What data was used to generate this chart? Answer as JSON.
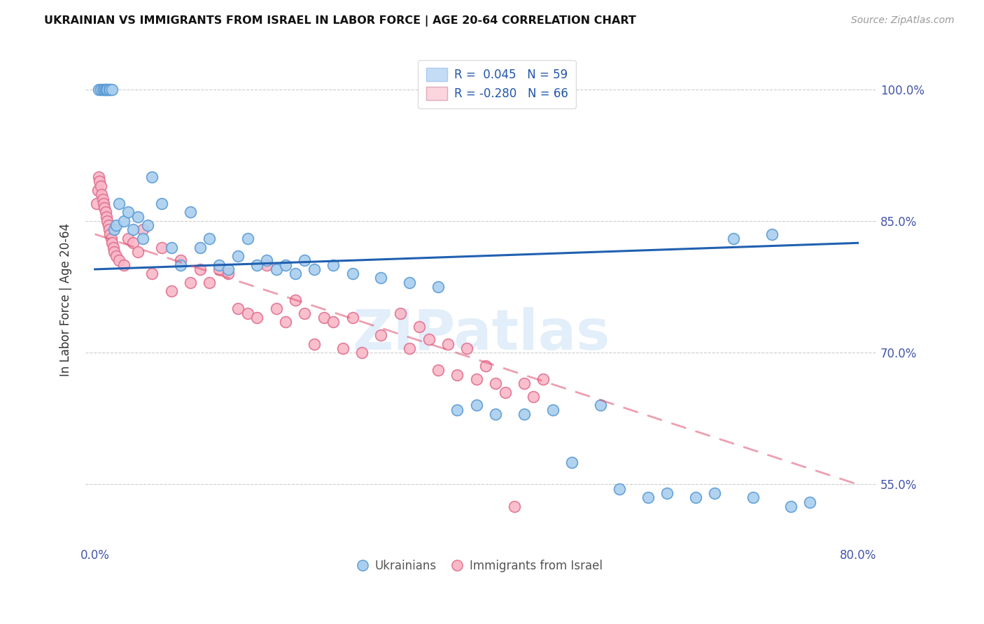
{
  "title": "UKRAINIAN VS IMMIGRANTS FROM ISRAEL IN LABOR FORCE | AGE 20-64 CORRELATION CHART",
  "source": "Source: ZipAtlas.com",
  "ylabel": "In Labor Force | Age 20-64",
  "xlim": [
    -1.0,
    82.0
  ],
  "ylim": [
    48.0,
    104.0
  ],
  "right_yticks": [
    55.0,
    70.0,
    85.0,
    100.0
  ],
  "right_ytick_labels": [
    "55.0%",
    "70.0%",
    "85.0%",
    "100.0%"
  ],
  "bottom_xtick_labels": [
    "0.0%",
    "",
    "",
    "",
    "80.0%"
  ],
  "bottom_xticks": [
    0.0,
    20.0,
    40.0,
    60.0,
    80.0
  ],
  "blue_color": "#AACFEE",
  "blue_edge_color": "#5A9BD5",
  "pink_color": "#F9B8C8",
  "pink_edge_color": "#E07090",
  "trend_blue_color": "#2060B0",
  "trend_pink_color": "#E05070",
  "legend_blue_label": "R =  0.045   N = 59",
  "legend_pink_label": "R = -0.280   N = 66",
  "legend_blue_fill": "#C5DCF5",
  "legend_pink_fill": "#FCD5DF",
  "watermark": "ZIPatlas",
  "legend_label_ukrainians": "Ukrainians",
  "legend_label_israel": "Immigrants from Israel",
  "blue_trend_x": [
    0.0,
    80.0
  ],
  "blue_trend_y": [
    79.5,
    82.5
  ],
  "pink_trend_x": [
    0.0,
    80.0
  ],
  "pink_trend_y": [
    83.5,
    55.0
  ],
  "blue_scatter_x": [
    0.4,
    0.6,
    0.8,
    1.0,
    1.1,
    1.2,
    1.3,
    1.5,
    1.6,
    1.8,
    2.0,
    2.2,
    2.5,
    3.0,
    3.5,
    4.0,
    4.5,
    5.0,
    5.5,
    6.0,
    7.0,
    8.0,
    9.0,
    10.0,
    11.0,
    12.0,
    13.0,
    14.0,
    15.0,
    16.0,
    17.0,
    18.0,
    19.0,
    20.0,
    21.0,
    22.0,
    23.0,
    25.0,
    27.0,
    30.0,
    33.0,
    36.0,
    38.0,
    40.0,
    42.0,
    45.0,
    48.0,
    50.0,
    53.0,
    55.0,
    58.0,
    60.0,
    63.0,
    65.0,
    67.0,
    69.0,
    71.0,
    73.0,
    75.0
  ],
  "blue_scatter_y": [
    100.0,
    100.0,
    100.0,
    100.0,
    100.0,
    100.0,
    100.0,
    100.0,
    100.0,
    100.0,
    84.0,
    84.5,
    87.0,
    85.0,
    86.0,
    84.0,
    85.5,
    83.0,
    84.5,
    90.0,
    87.0,
    82.0,
    80.0,
    86.0,
    82.0,
    83.0,
    80.0,
    79.5,
    81.0,
    83.0,
    80.0,
    80.5,
    79.5,
    80.0,
    79.0,
    80.5,
    79.5,
    80.0,
    79.0,
    78.5,
    78.0,
    77.5,
    63.5,
    64.0,
    63.0,
    63.0,
    63.5,
    57.5,
    64.0,
    54.5,
    53.5,
    54.0,
    53.5,
    54.0,
    83.0,
    53.5,
    83.5,
    52.5,
    53.0
  ],
  "pink_scatter_x": [
    0.2,
    0.3,
    0.4,
    0.5,
    0.6,
    0.7,
    0.8,
    0.9,
    1.0,
    1.1,
    1.2,
    1.3,
    1.4,
    1.5,
    1.6,
    1.7,
    1.8,
    1.9,
    2.0,
    2.2,
    2.5,
    3.0,
    3.5,
    4.0,
    4.5,
    5.0,
    6.0,
    7.0,
    8.0,
    9.0,
    10.0,
    11.0,
    12.0,
    13.0,
    14.0,
    15.0,
    16.0,
    17.0,
    18.0,
    19.0,
    20.0,
    21.0,
    22.0,
    23.0,
    24.0,
    25.0,
    26.0,
    27.0,
    28.0,
    30.0,
    32.0,
    33.0,
    34.0,
    35.0,
    36.0,
    37.0,
    38.0,
    39.0,
    40.0,
    41.0,
    42.0,
    43.0,
    44.0,
    45.0,
    46.0,
    47.0
  ],
  "pink_scatter_y": [
    87.0,
    88.5,
    90.0,
    89.5,
    89.0,
    88.0,
    87.5,
    87.0,
    86.5,
    86.0,
    85.5,
    85.0,
    84.5,
    84.0,
    83.5,
    83.0,
    82.5,
    82.0,
    81.5,
    81.0,
    80.5,
    80.0,
    83.0,
    82.5,
    81.5,
    84.0,
    79.0,
    82.0,
    77.0,
    80.5,
    78.0,
    79.5,
    78.0,
    79.5,
    79.0,
    75.0,
    74.5,
    74.0,
    80.0,
    75.0,
    73.5,
    76.0,
    74.5,
    71.0,
    74.0,
    73.5,
    70.5,
    74.0,
    70.0,
    72.0,
    74.5,
    70.5,
    73.0,
    71.5,
    68.0,
    71.0,
    67.5,
    70.5,
    67.0,
    68.5,
    66.5,
    65.5,
    52.5,
    66.5,
    65.0,
    67.0
  ]
}
